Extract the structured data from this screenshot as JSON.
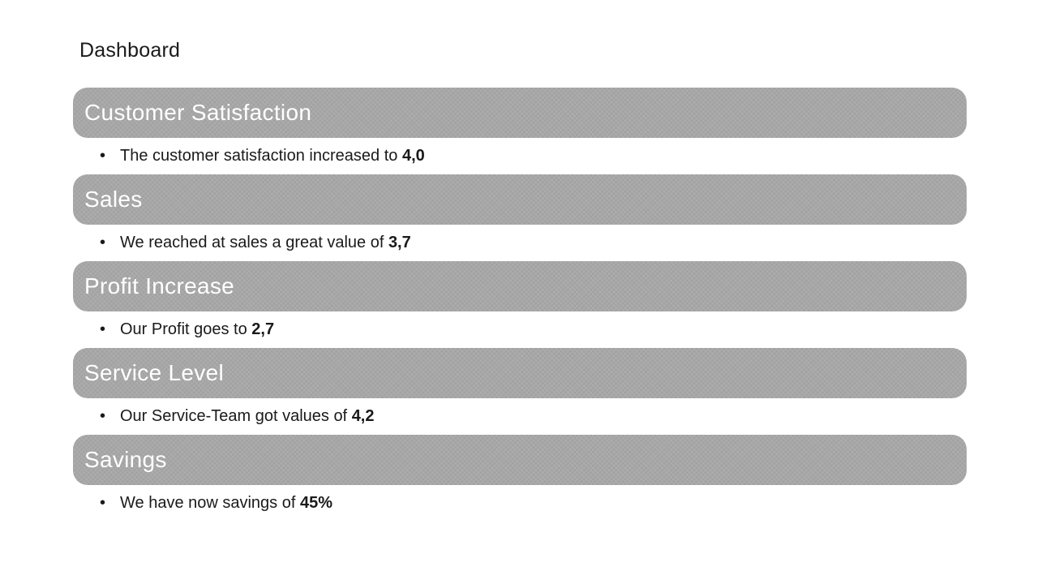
{
  "slide": {
    "title": "Dashboard",
    "colors": {
      "background": "#ffffff",
      "bar_fill": "#a7a7a7",
      "bar_text": "#ffffff",
      "body_text": "#1a1a1a"
    },
    "bullet_glyph": "•",
    "sections": [
      {
        "header": "Customer Satisfaction",
        "bullet_prefix": "The customer satisfaction increased to ",
        "bullet_value": "4,0"
      },
      {
        "header": "Sales",
        "bullet_prefix": "We reached at sales a great value of ",
        "bullet_value": "3,7"
      },
      {
        "header": "Profit Increase",
        "bullet_prefix": "Our Profit goes to ",
        "bullet_value": "2,7"
      },
      {
        "header": "Service Level",
        "bullet_prefix": "Our Service-Team got values of ",
        "bullet_value": "4,2"
      },
      {
        "header": "Savings",
        "bullet_prefix": "We have now savings of ",
        "bullet_value": "45%"
      }
    ]
  }
}
